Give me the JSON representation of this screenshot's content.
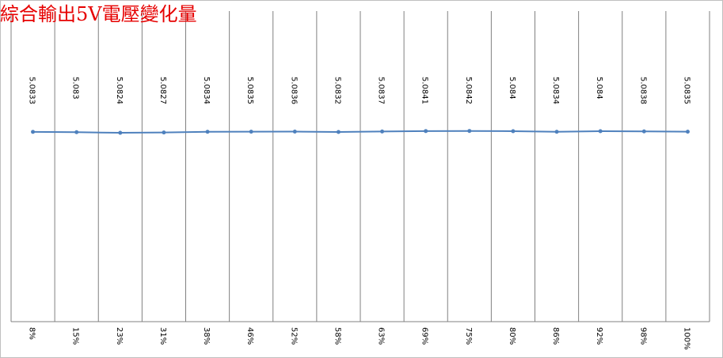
{
  "chart_data": {
    "type": "line",
    "title": "綜合輸出5V電壓變化量",
    "categories": [
      "8%",
      "15%",
      "23%",
      "31%",
      "38%",
      "46%",
      "52%",
      "58%",
      "63%",
      "69%",
      "75%",
      "80%",
      "86%",
      "92%",
      "98%",
      "100%"
    ],
    "series": [
      {
        "values": [
          5.0833,
          5.083,
          5.0824,
          5.0827,
          5.0834,
          5.0835,
          5.0836,
          5.0832,
          5.0837,
          5.0841,
          5.0842,
          5.084,
          5.0834,
          5.084,
          5.0838,
          5.0835
        ],
        "data_labels": [
          "5.0833",
          "5.083",
          "5.0824",
          "5.0827",
          "5.0834",
          "5.0835",
          "5.0836",
          "5.0832",
          "5.0837",
          "5.0841",
          "5.0842",
          "5.084",
          "5.0834",
          "5.084",
          "5.0838",
          "5.0835"
        ]
      }
    ],
    "ylim": [
      4.9,
      5.2
    ],
    "grid": "vertical",
    "legend": "none",
    "colors": {
      "line": "#4f81bd",
      "title": "#e60000",
      "grid": "#808080"
    }
  }
}
